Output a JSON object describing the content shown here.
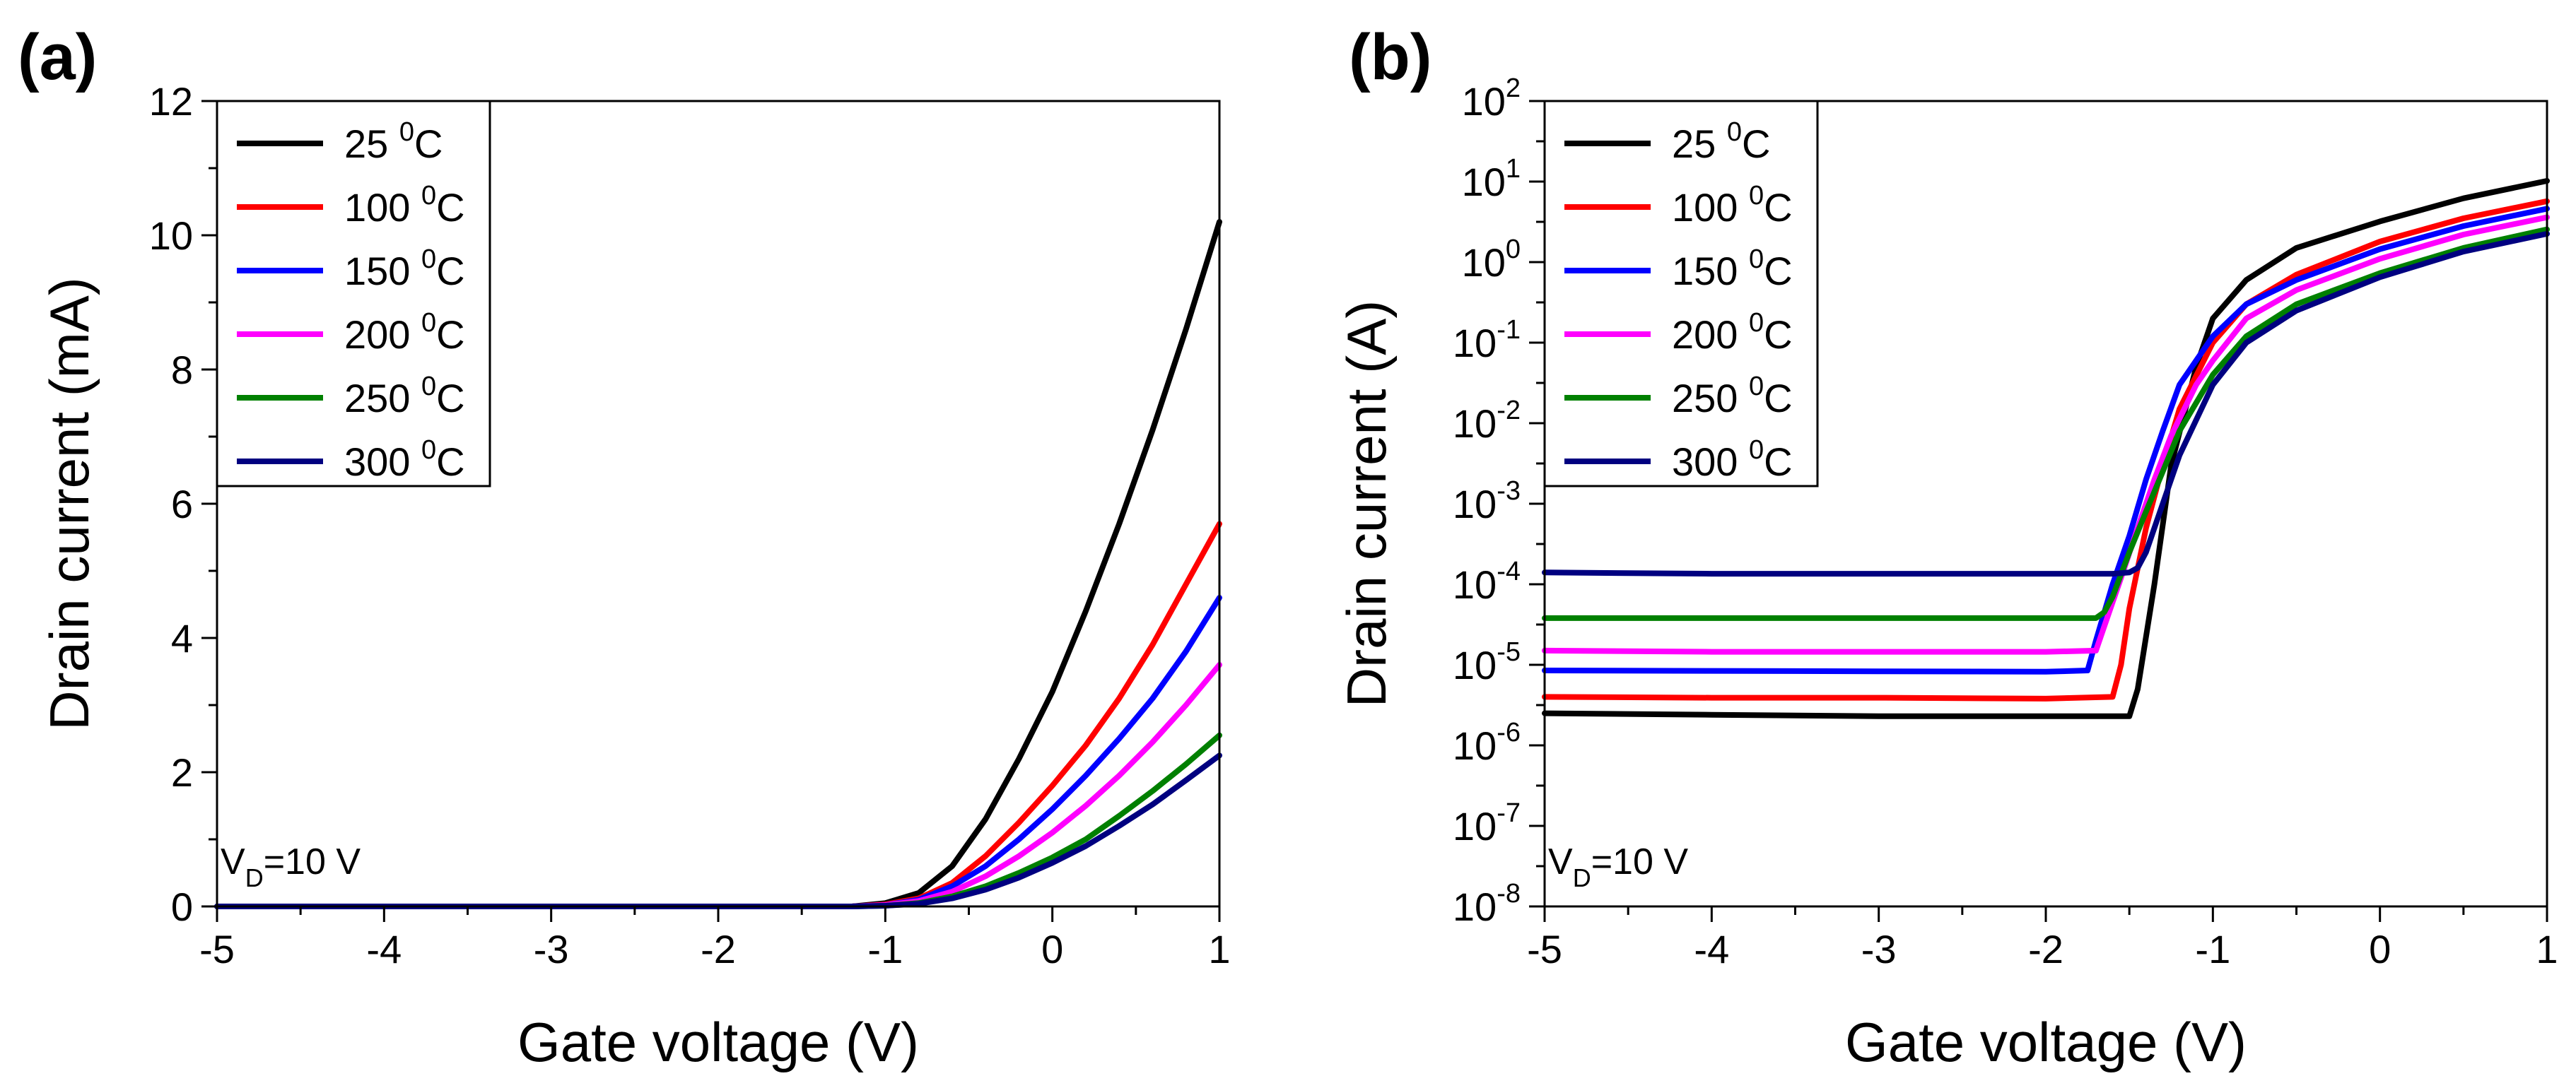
{
  "chart_data": [
    {
      "panel": "(a)",
      "type": "line",
      "scale": "linear",
      "xlabel": "Gate voltage (V)",
      "ylabel": "Drain current (mA)",
      "xlim": [
        -5,
        1
      ],
      "ylim": [
        0,
        12
      ],
      "xticks": [
        -5,
        -4,
        -3,
        -2,
        -1,
        0,
        1
      ],
      "xtick_labels": [
        "-5",
        "-4",
        "-3",
        "-2",
        "-1",
        "0",
        "1"
      ],
      "yticks": [
        0,
        2,
        4,
        6,
        8,
        10,
        12
      ],
      "ytick_labels": [
        "0",
        "2",
        "4",
        "6",
        "8",
        "10",
        "12"
      ],
      "annotation": {
        "main": "V",
        "sub": "D",
        "rest": "=10 V"
      },
      "legend_position": "top-left",
      "x": [
        -5,
        -1.2,
        -1.0,
        -0.8,
        -0.6,
        -0.4,
        -0.2,
        0,
        0.2,
        0.4,
        0.6,
        0.8,
        1.0
      ],
      "series": [
        {
          "name": "25",
          "unit": "C",
          "sup": "0",
          "color": "#000000",
          "values": [
            0,
            0,
            0.05,
            0.2,
            0.6,
            1.3,
            2.2,
            3.2,
            4.4,
            5.7,
            7.1,
            8.6,
            10.2
          ]
        },
        {
          "name": "100",
          "unit": "C",
          "sup": "0",
          "color": "#ff0000",
          "values": [
            0,
            0,
            0.03,
            0.12,
            0.35,
            0.75,
            1.25,
            1.8,
            2.4,
            3.1,
            3.9,
            4.8,
            5.7
          ]
        },
        {
          "name": "150",
          "unit": "C",
          "sup": "0",
          "color": "#0000ff",
          "values": [
            0,
            0,
            0.02,
            0.1,
            0.3,
            0.6,
            1.0,
            1.45,
            1.95,
            2.5,
            3.1,
            3.8,
            4.6
          ]
        },
        {
          "name": "200",
          "unit": "C",
          "sup": "0",
          "color": "#ff00ff",
          "values": [
            0,
            0,
            0.02,
            0.08,
            0.22,
            0.45,
            0.75,
            1.1,
            1.5,
            1.95,
            2.45,
            3.0,
            3.6
          ]
        },
        {
          "name": "250",
          "unit": "C",
          "sup": "0",
          "color": "#008000",
          "values": [
            0,
            0,
            0.01,
            0.05,
            0.15,
            0.3,
            0.5,
            0.73,
            1.0,
            1.35,
            1.72,
            2.12,
            2.55
          ]
        },
        {
          "name": "300",
          "unit": "C",
          "sup": "0",
          "color": "#000080",
          "values": [
            0,
            0,
            0.01,
            0.04,
            0.12,
            0.25,
            0.43,
            0.65,
            0.9,
            1.2,
            1.52,
            1.88,
            2.25
          ]
        }
      ]
    },
    {
      "panel": "(b)",
      "type": "line",
      "scale": "log",
      "xlabel": "Gate voltage (V)",
      "ylabel": "Drain current (A)",
      "xlim": [
        -5,
        1
      ],
      "ylim": [
        1e-08,
        100
      ],
      "xticks": [
        -5,
        -4,
        -3,
        -2,
        -1,
        0,
        1
      ],
      "xtick_labels": [
        "-5",
        "-4",
        "-3",
        "-2",
        "-1",
        "0",
        "1"
      ],
      "yticks": [
        1e-08,
        1e-07,
        1e-06,
        1e-05,
        0.0001,
        0.001,
        0.01,
        0.1,
        1,
        10,
        100
      ],
      "ytick_labels": [
        {
          "base": "10",
          "exp": "-8"
        },
        {
          "base": "10",
          "exp": "-7"
        },
        {
          "base": "10",
          "exp": "-6"
        },
        {
          "base": "10",
          "exp": "-5"
        },
        {
          "base": "10",
          "exp": "-4"
        },
        {
          "base": "10",
          "exp": "-3"
        },
        {
          "base": "10",
          "exp": "-2"
        },
        {
          "base": "10",
          "exp": "-1"
        },
        {
          "base": "10",
          "exp": "0"
        },
        {
          "base": "10",
          "exp": "1"
        },
        {
          "base": "10",
          "exp": "2"
        }
      ],
      "annotation": {
        "main": "V",
        "sub": "D",
        "rest": "=10 V"
      },
      "legend_position": "top-left",
      "series": [
        {
          "name": "25",
          "unit": "C",
          "sup": "0",
          "color": "#000000",
          "x": [
            -5,
            -4,
            -3,
            -2,
            -1.5,
            -1.45,
            -1.35,
            -1.25,
            -1.1,
            -1.0,
            -0.8,
            -0.5,
            0,
            0.5,
            1.0
          ],
          "values": [
            2.5e-06,
            2.4e-06,
            2.3e-06,
            2.3e-06,
            2.3e-06,
            5e-06,
            0.0001,
            0.003,
            0.05,
            0.2,
            0.6,
            1.5,
            3.2,
            6.2,
            10.2
          ]
        },
        {
          "name": "100",
          "unit": "C",
          "sup": "0",
          "color": "#ff0000",
          "x": [
            -5,
            -4,
            -3,
            -2,
            -1.6,
            -1.55,
            -1.5,
            -1.4,
            -1.3,
            -1.2,
            -1.0,
            -0.8,
            -0.5,
            0,
            0.5,
            1.0
          ],
          "values": [
            4e-06,
            3.9e-06,
            3.9e-06,
            3.8e-06,
            4e-06,
            1e-05,
            5e-05,
            0.0005,
            0.003,
            0.015,
            0.1,
            0.3,
            0.7,
            1.8,
            3.5,
            5.7
          ]
        },
        {
          "name": "150",
          "unit": "C",
          "sup": "0",
          "color": "#0000ff",
          "x": [
            -5,
            -4,
            -3,
            -2,
            -1.75,
            -1.7,
            -1.6,
            -1.5,
            -1.4,
            -1.3,
            -1.2,
            -1.0,
            -0.8,
            -0.5,
            0,
            0.5,
            1.0
          ],
          "values": [
            8.5e-06,
            8.4e-06,
            8.3e-06,
            8.2e-06,
            8.5e-06,
            2e-05,
            0.0001,
            0.0004,
            0.002,
            0.008,
            0.03,
            0.12,
            0.3,
            0.6,
            1.45,
            2.8,
            4.6
          ]
        },
        {
          "name": "200",
          "unit": "C",
          "sup": "0",
          "color": "#ff00ff",
          "x": [
            -5,
            -4,
            -3,
            -2,
            -1.7,
            -1.65,
            -1.55,
            -1.45,
            -1.35,
            -1.25,
            -1.1,
            -1.0,
            -0.8,
            -0.5,
            0,
            0.5,
            1.0
          ],
          "values": [
            1.5e-05,
            1.45e-05,
            1.45e-05,
            1.45e-05,
            1.5e-05,
            3e-05,
            0.00012,
            0.0005,
            0.002,
            0.007,
            0.03,
            0.06,
            0.2,
            0.45,
            1.1,
            2.2,
            3.6
          ]
        },
        {
          "name": "250",
          "unit": "C",
          "sup": "0",
          "color": "#008000",
          "x": [
            -5,
            -4,
            -3,
            -2,
            -1.7,
            -1.65,
            -1.6,
            -1.5,
            -1.4,
            -1.3,
            -1.2,
            -1.0,
            -0.8,
            -0.5,
            0,
            0.5,
            1.0
          ],
          "values": [
            3.8e-05,
            3.8e-05,
            3.8e-05,
            3.8e-05,
            3.8e-05,
            4.5e-05,
            7e-05,
            0.00025,
            0.0008,
            0.0025,
            0.008,
            0.04,
            0.12,
            0.3,
            0.73,
            1.5,
            2.55
          ]
        },
        {
          "name": "300",
          "unit": "C",
          "sup": "0",
          "color": "#000080",
          "x": [
            -5,
            -4,
            -3,
            -2,
            -1.6,
            -1.5,
            -1.45,
            -1.4,
            -1.3,
            -1.2,
            -1.0,
            -0.8,
            -0.5,
            0,
            0.5,
            1.0
          ],
          "values": [
            0.00014,
            0.000135,
            0.000135,
            0.000135,
            0.000135,
            0.00014,
            0.00016,
            0.00025,
            0.001,
            0.004,
            0.03,
            0.1,
            0.25,
            0.65,
            1.35,
            2.25
          ]
        }
      ]
    }
  ]
}
